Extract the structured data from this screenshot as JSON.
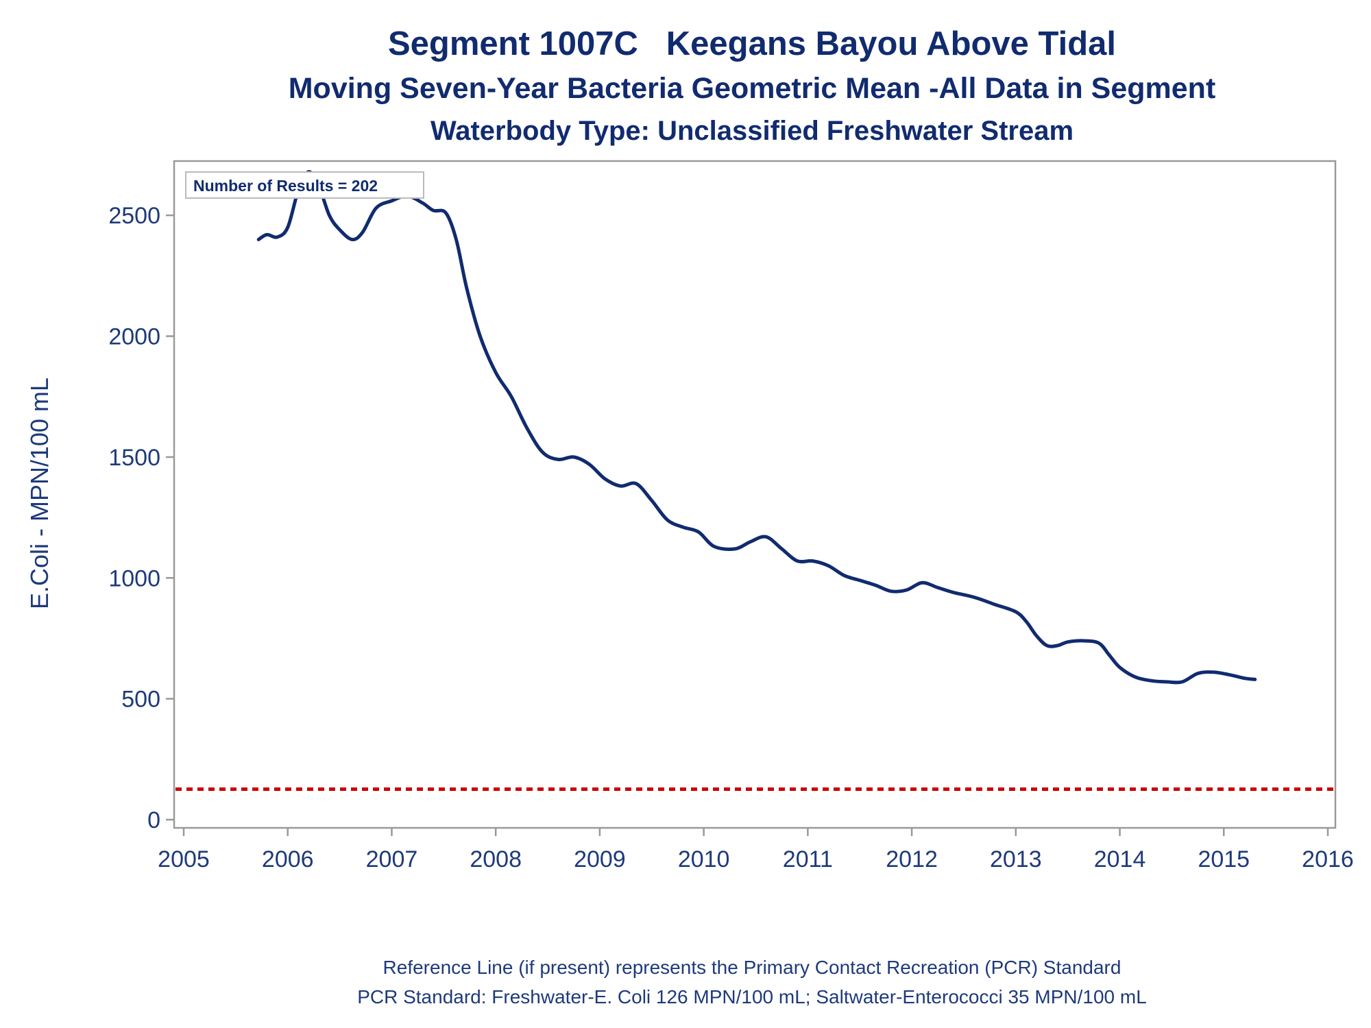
{
  "chart_data": {
    "type": "line",
    "title": "Segment 1007C   Keegans Bayou Above Tidal",
    "subtitle": "Moving Seven-Year Bacteria Geometric Mean -All Data in Segment",
    "subtitle2": "Waterbody Type: Unclassified Freshwater Stream",
    "xlabel": "",
    "ylabel": "E.Coli - MPN/100 mL",
    "xlim": [
      2005,
      2016
    ],
    "ylim": [
      0,
      2700
    ],
    "x_ticks": [
      2005,
      2006,
      2007,
      2008,
      2009,
      2010,
      2011,
      2012,
      2013,
      2014,
      2015,
      2016
    ],
    "y_ticks": [
      0,
      500,
      1000,
      1500,
      2000,
      2500
    ],
    "grid": false,
    "annotation": "Number of Results = 202",
    "series": [
      {
        "color": "#112b6f",
        "x": [
          2005.72,
          2005.8,
          2005.9,
          2006.0,
          2006.1,
          2006.2,
          2006.3,
          2006.4,
          2006.5,
          2006.62,
          2006.72,
          2006.85,
          2007.0,
          2007.15,
          2007.3,
          2007.4,
          2007.52,
          2007.62,
          2007.72,
          2007.85,
          2008.0,
          2008.15,
          2008.3,
          2008.45,
          2008.6,
          2008.75,
          2008.9,
          2009.05,
          2009.2,
          2009.35,
          2009.5,
          2009.65,
          2009.8,
          2009.95,
          2010.1,
          2010.3,
          2010.45,
          2010.6,
          2010.75,
          2010.9,
          2011.05,
          2011.2,
          2011.35,
          2011.5,
          2011.65,
          2011.8,
          2011.95,
          2012.1,
          2012.25,
          2012.4,
          2012.6,
          2012.8,
          2013.0,
          2013.1,
          2013.2,
          2013.3,
          2013.4,
          2013.5,
          2013.65,
          2013.8,
          2013.9,
          2014.0,
          2014.15,
          2014.3,
          2014.45,
          2014.6,
          2014.75,
          2014.9,
          2015.05,
          2015.2,
          2015.3
        ],
        "values": [
          2400,
          2420,
          2410,
          2450,
          2600,
          2680,
          2620,
          2500,
          2440,
          2400,
          2430,
          2530,
          2560,
          2580,
          2550,
          2520,
          2510,
          2400,
          2200,
          2000,
          1850,
          1750,
          1620,
          1520,
          1490,
          1500,
          1470,
          1410,
          1380,
          1390,
          1320,
          1240,
          1210,
          1190,
          1130,
          1120,
          1150,
          1170,
          1120,
          1070,
          1070,
          1050,
          1010,
          990,
          970,
          945,
          950,
          980,
          960,
          940,
          920,
          890,
          860,
          820,
          760,
          720,
          720,
          735,
          740,
          730,
          680,
          630,
          590,
          575,
          570,
          570,
          605,
          610,
          600,
          585,
          580
        ]
      }
    ],
    "reference_line": {
      "value": 126,
      "color": "#cc0000",
      "style": "dashed"
    }
  },
  "footnotes": {
    "line1": "Reference Line (if present) represents the Primary Contact Recreation (PCR) Standard",
    "line2": "PCR Standard: Freshwater-E. Coli 126 MPN/100 mL; Saltwater-Enterococci 35 MPN/100 mL"
  }
}
